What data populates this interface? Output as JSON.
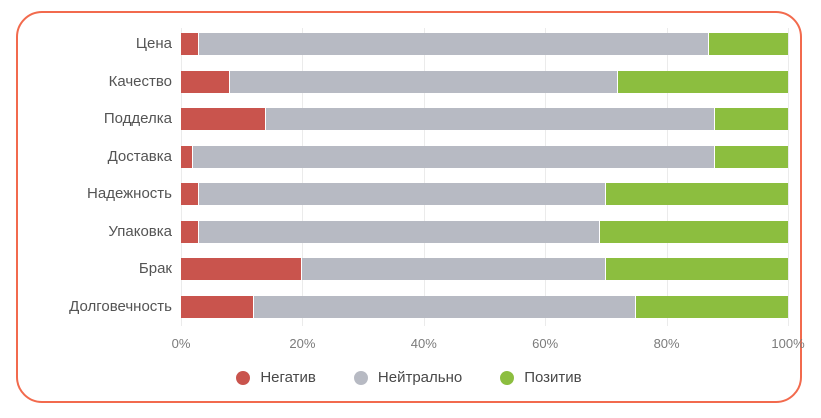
{
  "chart_data": {
    "type": "bar",
    "orientation": "horizontal",
    "stacked": true,
    "unit": "%",
    "title": "",
    "categories": [
      "Цена",
      "Качество",
      "Подделка",
      "Доставка",
      "Надежность",
      "Упаковка",
      "Брак",
      "Долговечность"
    ],
    "series": [
      {
        "name": "Негатив",
        "color": "#c9544d",
        "values": [
          3,
          8,
          14,
          2,
          3,
          3,
          20,
          12
        ]
      },
      {
        "name": "Нейтрально",
        "color": "#b7bac3",
        "values": [
          84,
          64,
          74,
          86,
          67,
          66,
          50,
          63
        ]
      },
      {
        "name": "Позитив",
        "color": "#8cbe3f",
        "values": [
          13,
          28,
          12,
          12,
          30,
          31,
          30,
          25
        ]
      }
    ],
    "x_ticks": [
      "0%",
      "20%",
      "40%",
      "60%",
      "80%",
      "100%"
    ],
    "xlim": [
      0,
      100
    ],
    "grid": true,
    "legend_position": "bottom"
  },
  "frame": {
    "border_color": "#f26a4d",
    "gridline_color": "#ebebeb"
  }
}
